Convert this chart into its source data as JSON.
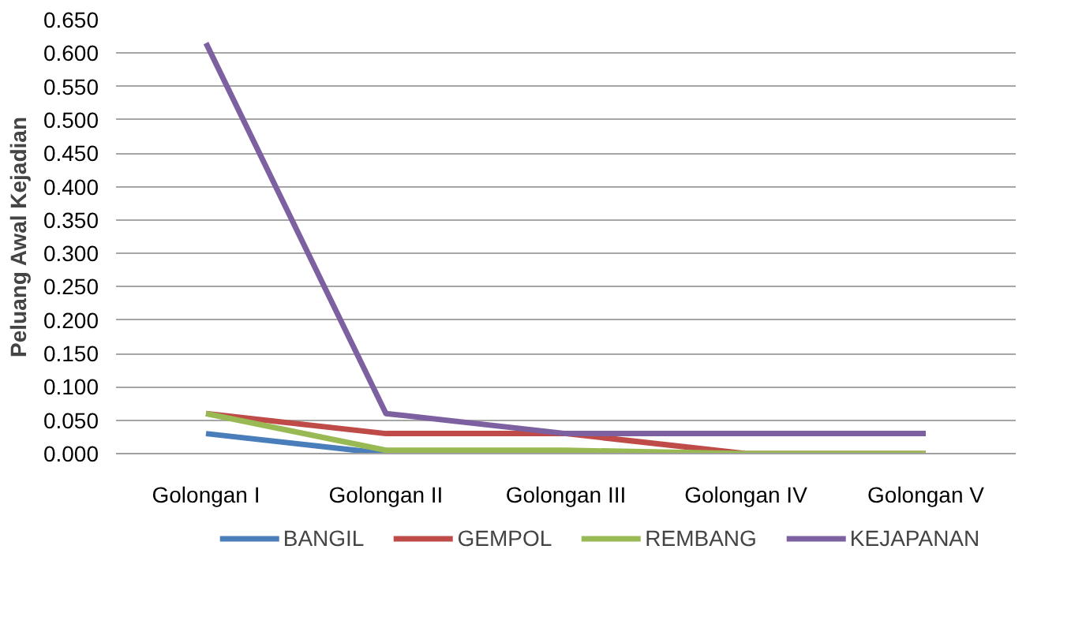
{
  "chart_data": {
    "type": "line",
    "ylabel": "Peluang Awal Kejadian",
    "categories": [
      "Golongan I",
      "Golongan II",
      "Golongan III",
      "Golongan IV",
      "Golongan V"
    ],
    "series": [
      {
        "name": "BANGIL",
        "color": "#4a7ebb",
        "values": [
          0.03,
          0,
          null,
          null,
          null
        ]
      },
      {
        "name": "GEMPOL",
        "color": "#be4b48",
        "values": [
          0.06,
          0.03,
          0.03,
          0,
          0
        ]
      },
      {
        "name": "REMBANG",
        "color": "#98b954",
        "values": [
          0.06,
          0.005,
          0.005,
          0,
          0
        ]
      },
      {
        "name": "KEJAPANAN",
        "color": "#7d60a0",
        "values": [
          0.615,
          0.06,
          0.03,
          0.03,
          0.03
        ]
      }
    ],
    "ylim": [
      0,
      0.65
    ],
    "yticks": [
      {
        "value": 0,
        "label": "0.000"
      },
      {
        "value": 0.05,
        "label": "0.050"
      },
      {
        "value": 0.1,
        "label": "0.100"
      },
      {
        "value": 0.15,
        "label": "0.150"
      },
      {
        "value": 0.2,
        "label": "0.200"
      },
      {
        "value": 0.25,
        "label": "0.250"
      },
      {
        "value": 0.3,
        "label": "0.300"
      },
      {
        "value": 0.35,
        "label": "0.350"
      },
      {
        "value": 0.4,
        "label": "0.400"
      },
      {
        "value": 0.45,
        "label": "0.450"
      },
      {
        "value": 0.5,
        "label": "0.500"
      },
      {
        "value": 0.55,
        "label": "0.550"
      },
      {
        "value": 0.6,
        "label": "0.600"
      },
      {
        "value": 0.65,
        "label": "0.650"
      }
    ],
    "grid": "y",
    "legend": "bottom",
    "marker": "none",
    "line_style": "solid"
  }
}
